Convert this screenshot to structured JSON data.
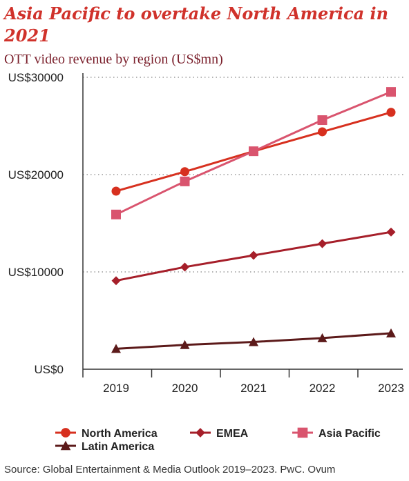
{
  "title": "Asia Pacific to overtake North America in 2021",
  "subtitle": "OTT video revenue by region (US$mn)",
  "source": "Source: Global Entertainment & Media Outlook 2019–2023. PwC. Ovum",
  "chart_data": {
    "type": "line",
    "title": "Asia Pacific to overtake North America in 2021",
    "subtitle": "OTT video revenue by region (US$mn)",
    "x": [
      "2019",
      "2020",
      "2021",
      "2022",
      "2023"
    ],
    "ylim": [
      0,
      30000
    ],
    "y_ticks": [
      0,
      10000,
      20000,
      30000
    ],
    "y_tick_labels": [
      "US$0",
      "US$10000",
      "US$20000",
      "US$30000"
    ],
    "grid": "horizontal dotted",
    "legend_position": "bottom",
    "series": [
      {
        "name": "North America",
        "color": "#d7301f",
        "marker": "circle",
        "values": [
          18300,
          20300,
          22400,
          24400,
          26400
        ]
      },
      {
        "name": "EMEA",
        "color": "#a61f2a",
        "marker": "diamond",
        "values": [
          9100,
          10500,
          11700,
          12900,
          14100
        ]
      },
      {
        "name": "Asia Pacific",
        "color": "#d9546e",
        "marker": "square",
        "values": [
          15900,
          19300,
          22400,
          25600,
          28500
        ]
      },
      {
        "name": "Latin America",
        "color": "#5c1a1a",
        "marker": "triangle",
        "values": [
          2100,
          2500,
          2800,
          3200,
          3700
        ]
      }
    ]
  }
}
